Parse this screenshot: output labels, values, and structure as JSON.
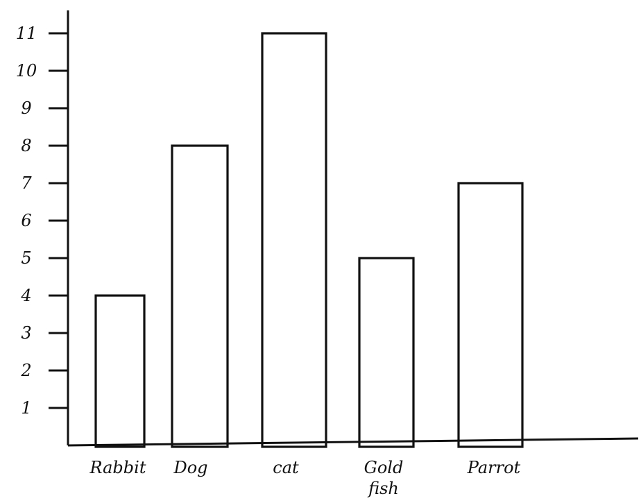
{
  "chart_data": {
    "type": "bar",
    "title": "",
    "xlabel": "",
    "ylabel": "",
    "categories": [
      "Rabbit",
      "Dog",
      "Cat",
      "Goldfish",
      "Parrot"
    ],
    "category_labels": [
      [
        "Rabbit"
      ],
      [
        "Dog"
      ],
      [
        "cat"
      ],
      [
        "Gold",
        "fish"
      ],
      [
        "Parrot"
      ]
    ],
    "values": [
      4,
      8,
      11,
      5,
      7
    ],
    "yticks": [
      1,
      2,
      3,
      4,
      5,
      6,
      7,
      8,
      9,
      10,
      11
    ],
    "ylim": [
      0,
      11
    ],
    "grid": false,
    "colors": {
      "bar_fill": "#ffffff",
      "stroke": "#111111"
    }
  }
}
